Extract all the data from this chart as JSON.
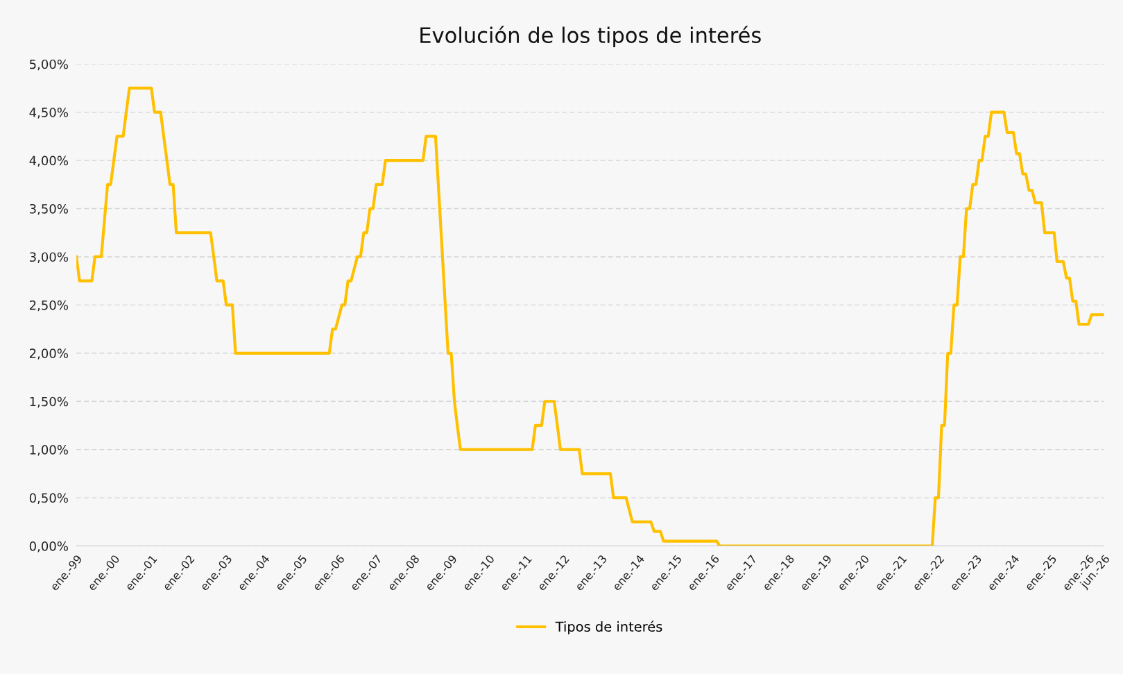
{
  "chart_data": {
    "type": "line",
    "title": "Evolución de los tipos de interés",
    "x": [
      "1999-01",
      "1999-02",
      "1999-06",
      "1999-07",
      "1999-09",
      "1999-11",
      "1999-12",
      "2000-02",
      "2000-04",
      "2000-05",
      "2000-06",
      "2001-01",
      "2001-02",
      "2001-04",
      "2001-05",
      "2001-06",
      "2001-07",
      "2001-08",
      "2001-09",
      "2002-08",
      "2002-09",
      "2002-10",
      "2002-12",
      "2003-01",
      "2003-03",
      "2003-04",
      "2005-10",
      "2005-11",
      "2005-12",
      "2006-02",
      "2006-03",
      "2006-04",
      "2006-05",
      "2006-07",
      "2006-08",
      "2006-09",
      "2006-10",
      "2006-11",
      "2006-12",
      "2007-01",
      "2007-03",
      "2007-04",
      "2008-04",
      "2008-05",
      "2008-08",
      "2008-12",
      "2009-01",
      "2009-02",
      "2009-03",
      "2009-04",
      "2011-03",
      "2011-04",
      "2011-06",
      "2011-07",
      "2011-10",
      "2011-11",
      "2011-12",
      "2012-06",
      "2012-07",
      "2013-04",
      "2013-05",
      "2013-09",
      "2013-11",
      "2014-05",
      "2014-06",
      "2014-08",
      "2014-09",
      "2016-02",
      "2016-03",
      "2021-11",
      "2021-12",
      "2022-01",
      "2022-02",
      "2022-03",
      "2022-04",
      "2022-05",
      "2022-06",
      "2022-07",
      "2022-08",
      "2022-09",
      "2022-10",
      "2022-11",
      "2022-12",
      "2023-01",
      "2023-02",
      "2023-03",
      "2023-04",
      "2023-05",
      "2023-06",
      "2023-10",
      "2023-11",
      "2024-01",
      "2024-02",
      "2024-03",
      "2024-04",
      "2024-05",
      "2024-06",
      "2024-07",
      "2024-08",
      "2024-10",
      "2024-11",
      "2025-02",
      "2025-03",
      "2025-05",
      "2025-06",
      "2025-07",
      "2025-08",
      "2025-09",
      "2025-10",
      "2026-01",
      "2026-02",
      "2026-06"
    ],
    "series": [
      {
        "name": "Tipos de interés",
        "color": "#ffc000",
        "values": [
          3.0,
          2.75,
          2.75,
          3.0,
          3.0,
          3.75,
          3.75,
          4.25,
          4.25,
          4.5,
          4.75,
          4.75,
          4.5,
          4.5,
          4.25,
          4.0,
          3.75,
          3.75,
          3.25,
          3.25,
          3.0,
          2.75,
          2.75,
          2.5,
          2.5,
          2.0,
          2.0,
          2.25,
          2.25,
          2.5,
          2.5,
          2.75,
          2.75,
          3.0,
          3.0,
          3.25,
          3.25,
          3.5,
          3.5,
          3.75,
          3.75,
          4.0,
          4.0,
          4.25,
          4.25,
          2.0,
          2.0,
          1.5,
          1.25,
          1.0,
          1.0,
          1.25,
          1.25,
          1.5,
          1.5,
          1.25,
          1.0,
          1.0,
          0.75,
          0.75,
          0.5,
          0.5,
          0.25,
          0.25,
          0.15,
          0.15,
          0.05,
          0.05,
          0.0,
          0.0,
          0.5,
          0.5,
          1.25,
          1.25,
          2.0,
          2.0,
          2.5,
          2.5,
          3.0,
          3.0,
          3.5,
          3.5,
          3.75,
          3.75,
          4.0,
          4.0,
          4.25,
          4.25,
          4.5,
          4.5,
          4.29,
          4.29,
          4.07,
          4.07,
          3.86,
          3.86,
          3.69,
          3.69,
          3.56,
          3.56,
          3.25,
          3.25,
          2.95,
          2.95,
          2.78,
          2.78,
          2.54,
          2.54,
          2.3,
          2.3,
          2.4,
          2.4
        ]
      }
    ],
    "xlim": [
      "1999-01",
      "2026-06"
    ],
    "xticks": [
      {
        "value": "1999-01",
        "label": "ene.-99"
      },
      {
        "value": "2000-01",
        "label": "ene.-00"
      },
      {
        "value": "2001-01",
        "label": "ene.-01"
      },
      {
        "value": "2002-01",
        "label": "ene.-02"
      },
      {
        "value": "2003-01",
        "label": "ene.-03"
      },
      {
        "value": "2004-01",
        "label": "ene.-04"
      },
      {
        "value": "2005-01",
        "label": "ene.-05"
      },
      {
        "value": "2006-01",
        "label": "ene.-06"
      },
      {
        "value": "2007-01",
        "label": "ene.-07"
      },
      {
        "value": "2008-01",
        "label": "ene.-08"
      },
      {
        "value": "2009-01",
        "label": "ene.-09"
      },
      {
        "value": "2010-01",
        "label": "ene.-10"
      },
      {
        "value": "2011-01",
        "label": "ene.-11"
      },
      {
        "value": "2012-01",
        "label": "ene.-12"
      },
      {
        "value": "2013-01",
        "label": "ene.-13"
      },
      {
        "value": "2014-01",
        "label": "ene.-14"
      },
      {
        "value": "2015-01",
        "label": "ene.-15"
      },
      {
        "value": "2016-01",
        "label": "ene.-16"
      },
      {
        "value": "2017-01",
        "label": "ene.-17"
      },
      {
        "value": "2018-01",
        "label": "ene.-18"
      },
      {
        "value": "2019-01",
        "label": "ene.-19"
      },
      {
        "value": "2020-01",
        "label": "ene.-20"
      },
      {
        "value": "2021-01",
        "label": "ene.-21"
      },
      {
        "value": "2022-01",
        "label": "ene.-22"
      },
      {
        "value": "2023-01",
        "label": "ene.-23"
      },
      {
        "value": "2024-01",
        "label": "ene.-24"
      },
      {
        "value": "2025-01",
        "label": "ene.-25"
      },
      {
        "value": "2026-01",
        "label": "ene.-26"
      },
      {
        "value": "2026-06",
        "label": "jun.-26"
      }
    ],
    "ylim": [
      0,
      5
    ],
    "yticks": [
      {
        "value": 0,
        "label": "0,00%"
      },
      {
        "value": 0.5,
        "label": "0,50%"
      },
      {
        "value": 1,
        "label": "1,00%"
      },
      {
        "value": 1.5,
        "label": "1,50%"
      },
      {
        "value": 2,
        "label": "2,00%"
      },
      {
        "value": 2.5,
        "label": "2,50%"
      },
      {
        "value": 3,
        "label": "3,00%"
      },
      {
        "value": 3.5,
        "label": "3,50%"
      },
      {
        "value": 4,
        "label": "4,00%"
      },
      {
        "value": 4.5,
        "label": "4,50%"
      },
      {
        "value": 5,
        "label": "5,00%"
      }
    ],
    "grid": "y",
    "legend": "bottom",
    "marker": "none",
    "line_style": "solid"
  }
}
